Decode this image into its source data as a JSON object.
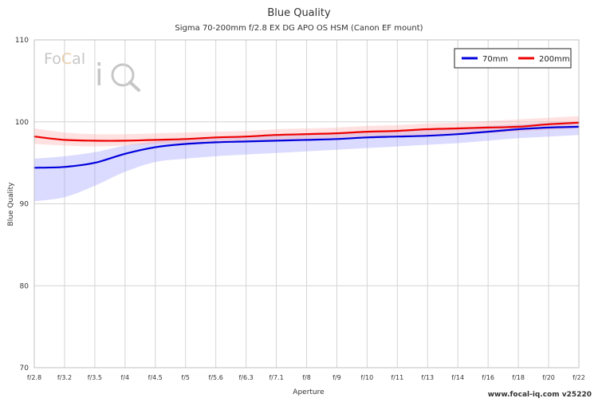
{
  "chart_data": {
    "type": "line",
    "title": "Blue Quality",
    "subtitle": "Sigma 70-200mm f/2.8 EX DG APO OS HSM (Canon EF mount)",
    "xlabel": "Aperture",
    "ylabel": "Blue Quality",
    "categories": [
      "f/2.8",
      "f/3.2",
      "f/3.5",
      "f/4",
      "f/4.5",
      "f/5",
      "f/5.6",
      "f/6.3",
      "f/7.1",
      "f/8",
      "f/9",
      "f/10",
      "f/11",
      "f/13",
      "f/14",
      "f/16",
      "f/18",
      "f/20",
      "f/22"
    ],
    "ylim": [
      70,
      110
    ],
    "yticks": [
      70,
      80,
      90,
      100,
      110
    ],
    "grid": true,
    "legend": "top-right",
    "series": [
      {
        "name": "70mm",
        "color": "#0000dd",
        "band_color": "#9999ff",
        "values": [
          94.4,
          94.5,
          95.0,
          96.1,
          96.9,
          97.3,
          97.5,
          97.6,
          97.7,
          97.8,
          97.9,
          98.1,
          98.2,
          98.3,
          98.5,
          98.8,
          99.1,
          99.3,
          99.4
        ],
        "band_low": [
          90.3,
          90.8,
          92.2,
          93.9,
          95.1,
          95.5,
          95.8,
          96.0,
          96.2,
          96.4,
          96.6,
          96.8,
          97.0,
          97.2,
          97.4,
          97.7,
          98.0,
          98.2,
          98.4
        ],
        "band_high": [
          95.5,
          95.8,
          96.3,
          97.1,
          97.6,
          97.9,
          98.1,
          98.3,
          98.5,
          98.6,
          98.7,
          98.9,
          99.0,
          99.1,
          99.3,
          99.5,
          99.7,
          99.9,
          100.0
        ]
      },
      {
        "name": "200mm",
        "color": "#ee0000",
        "band_color": "#ffaaaa",
        "values": [
          98.2,
          97.8,
          97.7,
          97.7,
          97.8,
          97.9,
          98.1,
          98.2,
          98.4,
          98.5,
          98.6,
          98.8,
          98.9,
          99.1,
          99.2,
          99.3,
          99.4,
          99.7,
          99.9
        ],
        "band_low": [
          97.3,
          97.1,
          97.0,
          97.1,
          97.3,
          97.4,
          97.5,
          97.7,
          97.8,
          97.9,
          98.0,
          98.1,
          98.2,
          98.3,
          98.5,
          98.6,
          98.8,
          99.0,
          99.2
        ],
        "band_high": [
          99.2,
          98.7,
          98.5,
          98.5,
          98.6,
          98.7,
          98.8,
          98.9,
          99.1,
          99.2,
          99.3,
          99.5,
          99.6,
          99.8,
          99.9,
          100.1,
          100.3,
          100.5,
          100.7
        ]
      }
    ]
  },
  "branding": {
    "logo_text": "FoCal iQ",
    "footer": "www.focal-iq.com  v25220"
  }
}
